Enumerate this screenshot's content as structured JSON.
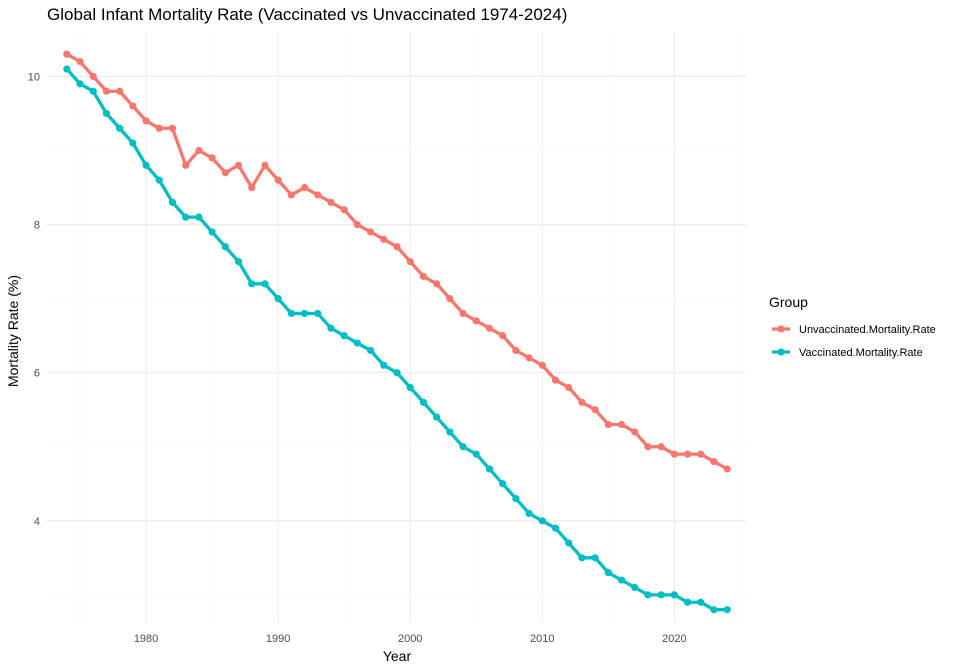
{
  "chart_data": {
    "type": "line",
    "title": "Global Infant Mortality Rate (Vaccinated vs Unvaccinated 1974-2024)",
    "xlabel": "Year",
    "ylabel": "Mortality Rate (%)",
    "xlim": [
      1972.5,
      2025.5
    ],
    "ylim": [
      2.62,
      10.6
    ],
    "x_ticks": [
      1980,
      1990,
      2000,
      2010,
      2020
    ],
    "y_ticks": [
      4,
      6,
      8,
      10
    ],
    "grid": true,
    "legend": {
      "title": "Group",
      "position": "right"
    },
    "x": [
      1974,
      1975,
      1976,
      1977,
      1978,
      1979,
      1980,
      1981,
      1982,
      1983,
      1984,
      1985,
      1986,
      1987,
      1988,
      1989,
      1990,
      1991,
      1992,
      1993,
      1994,
      1995,
      1996,
      1997,
      1998,
      1999,
      2000,
      2001,
      2002,
      2003,
      2004,
      2005,
      2006,
      2007,
      2008,
      2009,
      2010,
      2011,
      2012,
      2013,
      2014,
      2015,
      2016,
      2017,
      2018,
      2019,
      2020,
      2021,
      2022,
      2023,
      2024
    ],
    "series": [
      {
        "name": "Unvaccinated.Mortality.Rate",
        "color": "#F8766D",
        "values": [
          10.3,
          10.2,
          10.0,
          9.8,
          9.8,
          9.6,
          9.4,
          9.3,
          9.3,
          8.8,
          9.0,
          8.9,
          8.7,
          8.8,
          8.5,
          8.8,
          8.6,
          8.4,
          8.5,
          8.4,
          8.3,
          8.2,
          8.0,
          7.9,
          7.8,
          7.7,
          7.5,
          7.3,
          7.2,
          7.0,
          6.8,
          6.7,
          6.6,
          6.5,
          6.3,
          6.2,
          6.1,
          5.9,
          5.8,
          5.6,
          5.5,
          5.3,
          5.3,
          5.2,
          5.0,
          5.0,
          4.9,
          4.9,
          4.9,
          4.8,
          4.7
        ]
      },
      {
        "name": "Vaccinated.Mortality.Rate",
        "color": "#00BFC4",
        "values": [
          10.1,
          9.9,
          9.8,
          9.5,
          9.3,
          9.1,
          8.8,
          8.6,
          8.3,
          8.1,
          8.1,
          7.9,
          7.7,
          7.5,
          7.2,
          7.2,
          7.0,
          6.8,
          6.8,
          6.8,
          6.6,
          6.5,
          6.4,
          6.3,
          6.1,
          6.0,
          5.8,
          5.6,
          5.4,
          5.2,
          5.0,
          4.9,
          4.7,
          4.5,
          4.3,
          4.1,
          4.0,
          3.9,
          3.7,
          3.5,
          3.5,
          3.3,
          3.2,
          3.1,
          3.0,
          3.0,
          3.0,
          2.9,
          2.9,
          2.8,
          2.8
        ]
      }
    ]
  }
}
